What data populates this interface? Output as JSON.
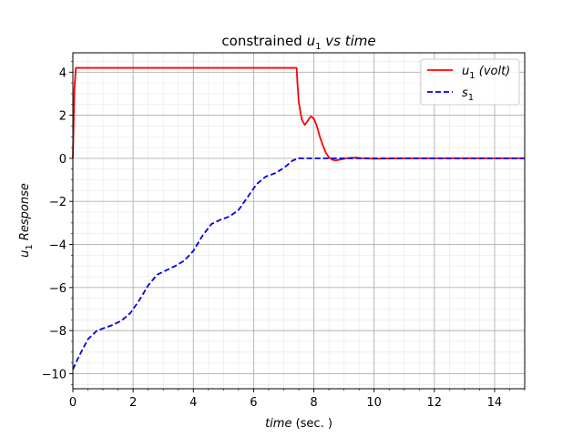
{
  "chart_data": {
    "type": "line",
    "title_main": "constrained ",
    "title_sym": "u",
    "title_sub": "1",
    "title_rest": " vs time",
    "xlabel_italic": "time",
    "xlabel_rest": " (sec. )",
    "ylabel_sym": "u",
    "ylabel_sub": "1",
    "ylabel_rest": " Response",
    "xlim": [
      0,
      15
    ],
    "ylim": [
      -10.7,
      4.9
    ],
    "xticks": [
      0,
      2,
      4,
      6,
      8,
      10,
      12,
      14
    ],
    "yticks": [
      -10,
      -8,
      -6,
      -4,
      -2,
      0,
      2,
      4
    ],
    "xminor_step": 0.5,
    "yminor_step": 0.5,
    "grid": true,
    "legend_position": "top-right",
    "series": [
      {
        "name_sym": "u",
        "name_sub": "1",
        "name_rest": " (volt)",
        "color": "#ff0000",
        "dash": "solid",
        "x": [
          0,
          0.05,
          0.1,
          0.2,
          1,
          3,
          5,
          7,
          7.43,
          7.45,
          7.5,
          7.6,
          7.7,
          7.8,
          7.9,
          8.0,
          8.1,
          8.2,
          8.3,
          8.4,
          8.5,
          8.6,
          8.7,
          8.8,
          8.9,
          9.0,
          9.2,
          9.4,
          9.6,
          10.0,
          11,
          12,
          13,
          14,
          15
        ],
        "y": [
          0,
          3.2,
          4.2,
          4.2,
          4.2,
          4.2,
          4.2,
          4.2,
          4.2,
          3.6,
          2.6,
          1.8,
          1.55,
          1.75,
          1.95,
          1.85,
          1.5,
          1.0,
          0.6,
          0.25,
          0.05,
          -0.05,
          -0.1,
          -0.08,
          -0.05,
          -0.02,
          0.02,
          0.03,
          0.0,
          -0.02,
          0,
          0,
          0,
          0,
          0
        ]
      },
      {
        "name_sym": "s",
        "name_sub": "1",
        "name_rest": "",
        "color": "#0000dd",
        "dash": "dashed",
        "x": [
          0,
          0.2,
          0.5,
          0.8,
          1.0,
          1.3,
          1.6,
          1.9,
          2.2,
          2.5,
          2.8,
          3.1,
          3.4,
          3.7,
          4.0,
          4.3,
          4.6,
          4.9,
          5.2,
          5.5,
          5.8,
          6.1,
          6.4,
          6.7,
          7.0,
          7.3,
          7.5,
          7.7,
          8.0,
          9.0,
          10.0,
          11,
          12,
          13,
          14,
          15
        ],
        "y": [
          -9.8,
          -9.2,
          -8.4,
          -8.0,
          -7.9,
          -7.75,
          -7.55,
          -7.2,
          -6.6,
          -5.9,
          -5.4,
          -5.2,
          -5.0,
          -4.75,
          -4.3,
          -3.6,
          -3.05,
          -2.85,
          -2.7,
          -2.4,
          -1.8,
          -1.2,
          -0.85,
          -0.7,
          -0.45,
          -0.1,
          0.0,
          0.0,
          0.0,
          0.0,
          0.0,
          0,
          0,
          0,
          0,
          0
        ]
      }
    ]
  }
}
